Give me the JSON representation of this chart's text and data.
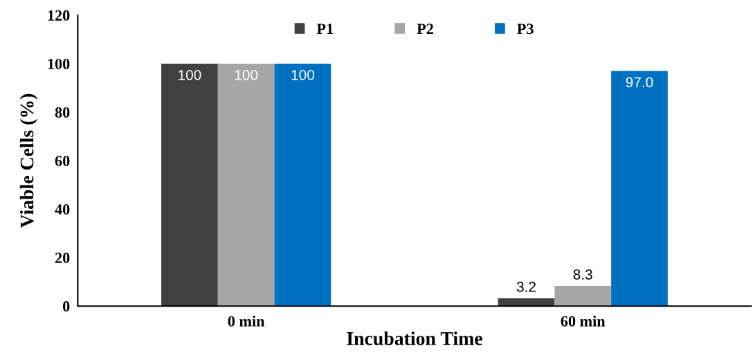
{
  "chart_data": {
    "type": "bar",
    "xlabel": "Incubation Time",
    "ylabel": "Viable Cells (%)",
    "categories": [
      "0 min",
      "60 min"
    ],
    "series": [
      {
        "name": "P1",
        "color": "#404040",
        "values": [
          100,
          3.2
        ],
        "value_labels": [
          "100",
          "3.2"
        ]
      },
      {
        "name": "P2",
        "color": "#a6a6a6",
        "values": [
          100,
          8.3
        ],
        "value_labels": [
          "100",
          "8.3"
        ]
      },
      {
        "name": "P3",
        "color": "#0070c0",
        "values": [
          100,
          97.0
        ],
        "value_labels": [
          "100",
          "97.0"
        ]
      }
    ],
    "ylim": [
      0,
      120
    ],
    "yticks": [
      0,
      20,
      40,
      60,
      80,
      100,
      120
    ],
    "grid": false,
    "legend": "top"
  }
}
